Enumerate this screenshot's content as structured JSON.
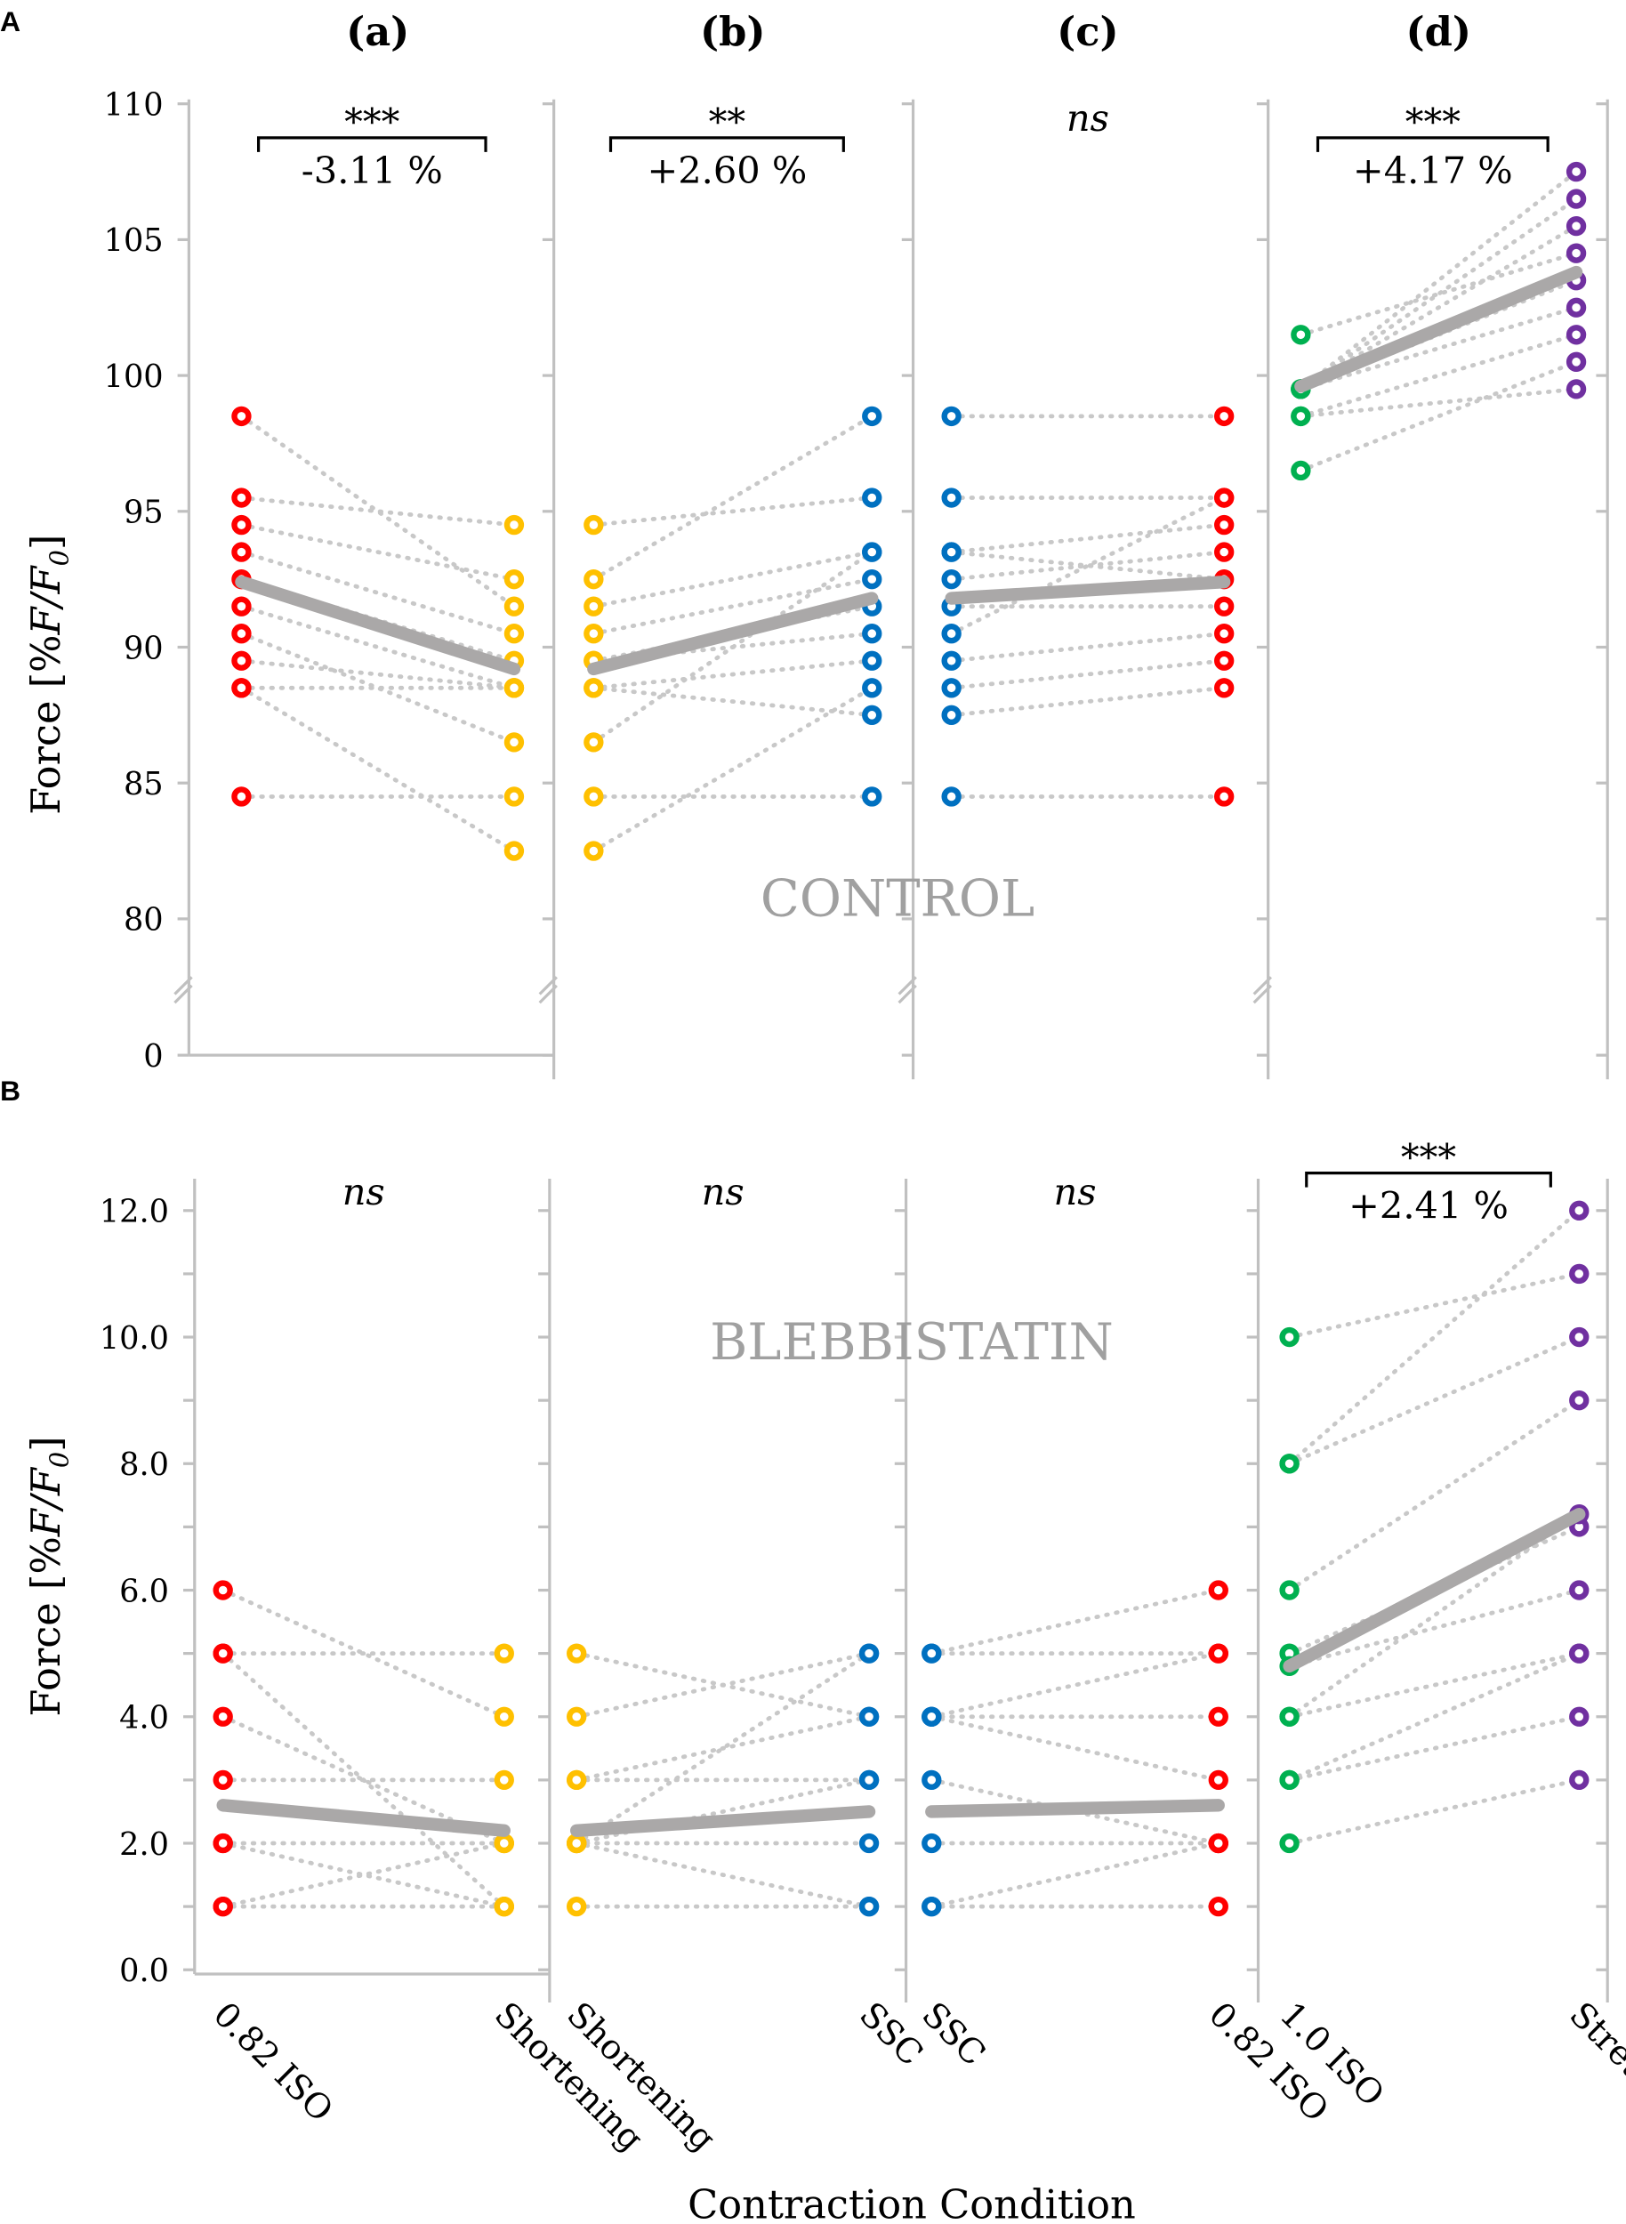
{
  "chart_data": [
    {
      "type": "scatter",
      "panel_letter": "A",
      "annotation": "CONTROL",
      "ylabel": {
        "main": "Force [%",
        "italic": "F/F",
        "sub": "0",
        "end": "]"
      },
      "ylim": [
        80,
        110
      ],
      "axis_break": true,
      "yticks": [
        "0",
        "80",
        "85",
        "90",
        "95",
        "100",
        "105",
        "110"
      ],
      "grid": false,
      "colors": {
        "mean_line": "#aaa8a8",
        "pair_line": "#c8c8c8"
      },
      "subplots": [
        {
          "label": "(a)",
          "significance": "***",
          "change": "-3.11 %",
          "left_color": "#ff0000",
          "right_color": "#ffc000",
          "pairs": [
            [
              98.5,
              91.5
            ],
            [
              95.5,
              94.5
            ],
            [
              94.5,
              92.5
            ],
            [
              93.5,
              90.5
            ],
            [
              92.5,
              89.5
            ],
            [
              91.5,
              88.5
            ],
            [
              90.5,
              86.5
            ],
            [
              89.5,
              88.5
            ],
            [
              88.5,
              88.5
            ],
            [
              88.5,
              82.5
            ],
            [
              84.5,
              84.5
            ]
          ],
          "mean": [
            92.4,
            89.2
          ]
        },
        {
          "label": "(b)",
          "significance": "**",
          "change": "+2.60 %",
          "left_color": "#ffc000",
          "right_color": "#0070c0",
          "pairs": [
            [
              94.5,
              95.5
            ],
            [
              92.5,
              98.5
            ],
            [
              91.5,
              93.5
            ],
            [
              90.5,
              92.5
            ],
            [
              89.5,
              91.5
            ],
            [
              89.5,
              90.5
            ],
            [
              88.5,
              89.5
            ],
            [
              88.5,
              87.5
            ],
            [
              86.5,
              93.5
            ],
            [
              84.5,
              84.5
            ],
            [
              82.5,
              88.5
            ]
          ],
          "mean": [
            89.2,
            91.8
          ]
        },
        {
          "label": "(c)",
          "significance": "ns",
          "change": "",
          "left_color": "#0070c0",
          "right_color": "#ff0000",
          "pairs": [
            [
              98.5,
              98.5
            ],
            [
              95.5,
              95.5
            ],
            [
              93.5,
              94.5
            ],
            [
              93.5,
              92.5
            ],
            [
              92.5,
              93.5
            ],
            [
              91.5,
              91.5
            ],
            [
              90.5,
              95.5
            ],
            [
              89.5,
              90.5
            ],
            [
              88.5,
              89.5
            ],
            [
              87.5,
              88.5
            ],
            [
              84.5,
              84.5
            ]
          ],
          "mean": [
            91.8,
            92.4
          ]
        },
        {
          "label": "(d)",
          "significance": "***",
          "change": "+4.17 %",
          "left_color": "#00b050",
          "right_color": "#7030a0",
          "pairs": [
            [
              101.5,
              104.5
            ],
            [
              99.5,
              107.5
            ],
            [
              99.5,
              106.5
            ],
            [
              99.5,
              105.5
            ],
            [
              99.5,
              103.5
            ],
            [
              99.5,
              102.5
            ],
            [
              98.5,
              101.5
            ],
            [
              98.5,
              99.5
            ],
            [
              96.5,
              100.5
            ]
          ],
          "mean": [
            99.6,
            103.8
          ]
        }
      ]
    },
    {
      "type": "scatter",
      "panel_letter": "B",
      "annotation": "BLEBBISTATIN",
      "ylabel": {
        "main": "Force [%",
        "italic": "F/F",
        "sub": "0",
        "end": "]"
      },
      "xlabel": "Contraction Condition",
      "ylim": [
        0,
        12
      ],
      "yticks": [
        "0.0",
        "2.0",
        "4.0",
        "6.0",
        "8.0",
        "10.0",
        "12.0"
      ],
      "xtick_labels": [
        "0.82 ISO",
        "Shortening",
        "Shortening",
        "SSC",
        "SSC",
        "0.82 ISO",
        "1.0 ISO",
        "Stretch"
      ],
      "grid": false,
      "subplots": [
        {
          "significance": "ns",
          "change": "",
          "left_color": "#ff0000",
          "right_color": "#ffc000",
          "pairs": [
            [
              6,
              4
            ],
            [
              5,
              5
            ],
            [
              5,
              1
            ],
            [
              4,
              2
            ],
            [
              3,
              3
            ],
            [
              2,
              2
            ],
            [
              2,
              1
            ],
            [
              1,
              2
            ],
            [
              1,
              1
            ]
          ],
          "mean": [
            2.6,
            2.2
          ]
        },
        {
          "significance": "ns",
          "change": "",
          "left_color": "#ffc000",
          "right_color": "#0070c0",
          "pairs": [
            [
              5,
              4
            ],
            [
              4,
              5
            ],
            [
              3,
              4
            ],
            [
              3,
              3
            ],
            [
              2,
              5
            ],
            [
              2,
              3
            ],
            [
              2,
              2
            ],
            [
              2,
              1
            ],
            [
              1,
              1
            ]
          ],
          "mean": [
            2.2,
            2.5
          ]
        },
        {
          "significance": "ns",
          "change": "",
          "left_color": "#0070c0",
          "right_color": "#ff0000",
          "pairs": [
            [
              5,
              6
            ],
            [
              5,
              5
            ],
            [
              4,
              5
            ],
            [
              4,
              4
            ],
            [
              4,
              3
            ],
            [
              3,
              2
            ],
            [
              2,
              2
            ],
            [
              1,
              2
            ],
            [
              1,
              1
            ]
          ],
          "mean": [
            2.5,
            2.6
          ]
        },
        {
          "significance": "***",
          "change": "+2.41 %",
          "left_color": "#00b050",
          "right_color": "#7030a0",
          "pairs": [
            [
              10,
              11
            ],
            [
              8,
              12
            ],
            [
              8,
              10
            ],
            [
              6,
              9
            ],
            [
              5,
              7
            ],
            [
              4.8,
              6
            ],
            [
              4,
              5
            ],
            [
              4,
              7.2
            ],
            [
              3,
              5
            ],
            [
              3,
              4
            ],
            [
              2,
              3
            ]
          ],
          "mean": [
            4.8,
            7.2
          ]
        }
      ]
    }
  ]
}
